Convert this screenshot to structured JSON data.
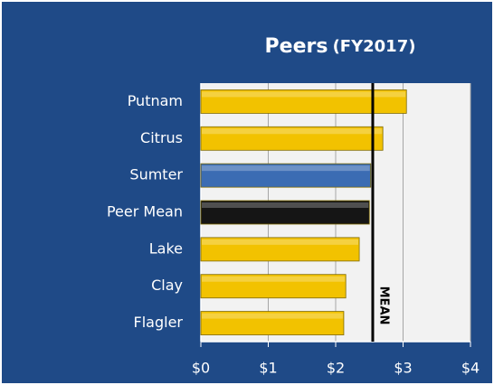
{
  "chart_data": {
    "type": "hbar",
    "title": "Peers",
    "subtitle": "(FY2017)",
    "categories": [
      "Putnam",
      "Citrus",
      "Sumter",
      "Peer Mean",
      "Lake",
      "Clay",
      "Flagler"
    ],
    "values": [
      3.05,
      2.7,
      2.52,
      2.5,
      2.35,
      2.15,
      2.12
    ],
    "colors": [
      "#f2c200",
      "#f2c200",
      "#3b6cb3",
      "#151515",
      "#f2c200",
      "#f2c200",
      "#f2c200"
    ],
    "xlim": [
      0,
      4
    ],
    "xticks": [
      {
        "value": 0,
        "label": "$0"
      },
      {
        "value": 1,
        "label": "$1"
      },
      {
        "value": 2,
        "label": "$2"
      },
      {
        "value": 3,
        "label": "$3"
      },
      {
        "value": 4,
        "label": "$4"
      }
    ],
    "grid": true,
    "annotations": [
      {
        "text": "MEAN",
        "value": 2.55
      }
    ]
  }
}
